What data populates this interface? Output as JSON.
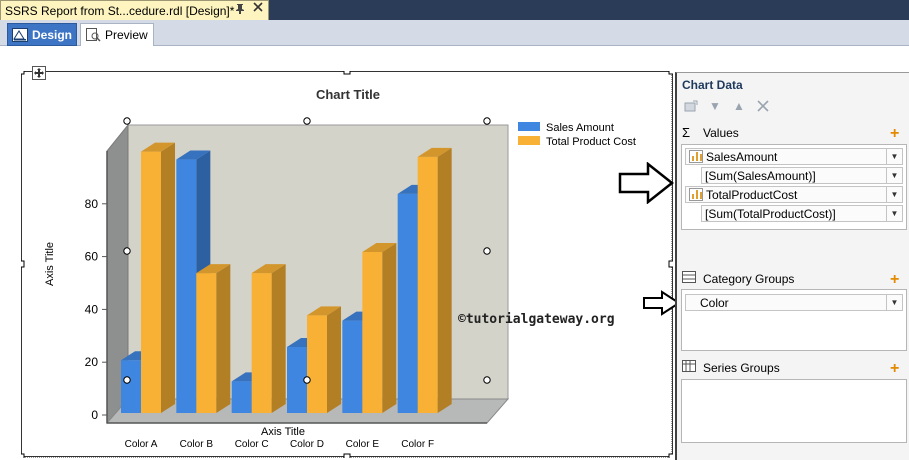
{
  "document_tab": {
    "title": "SSRS Report from St...cedure.rdl [Design]*"
  },
  "view_tabs": {
    "design": "Design",
    "preview": "Preview"
  },
  "chart_pane": {
    "title": "Chart Data",
    "values_label": "Values",
    "values": [
      {
        "field": "SalesAmount",
        "expression": "[Sum(SalesAmount)]"
      },
      {
        "field": "TotalProductCost",
        "expression": "[Sum(TotalProductCost)]"
      }
    ],
    "category_groups_label": "Category Groups",
    "category_groups": [
      "Color"
    ],
    "series_groups_label": "Series Groups"
  },
  "watermark": "©tutorialgateway.org",
  "chart_data": {
    "type": "bar",
    "title": "Chart Title",
    "xlabel": "Axis Title",
    "ylabel": "Axis Title",
    "categories": [
      "Color A",
      "Color B",
      "Color C",
      "Color D",
      "Color E",
      "Color F"
    ],
    "yticks": [
      "0",
      "20",
      "40",
      "60",
      "80"
    ],
    "ylim": [
      0,
      100
    ],
    "style": "3d-clustered-column",
    "legend_position": "top-right",
    "grid": false,
    "series": [
      {
        "name": "Sales Amount",
        "color": "#3f86e0",
        "values": [
          20,
          96,
          12,
          25,
          35,
          83
        ]
      },
      {
        "name": "Total Product Cost",
        "color": "#f8b134",
        "values": [
          99,
          53,
          53,
          37,
          61,
          97
        ]
      }
    ]
  }
}
